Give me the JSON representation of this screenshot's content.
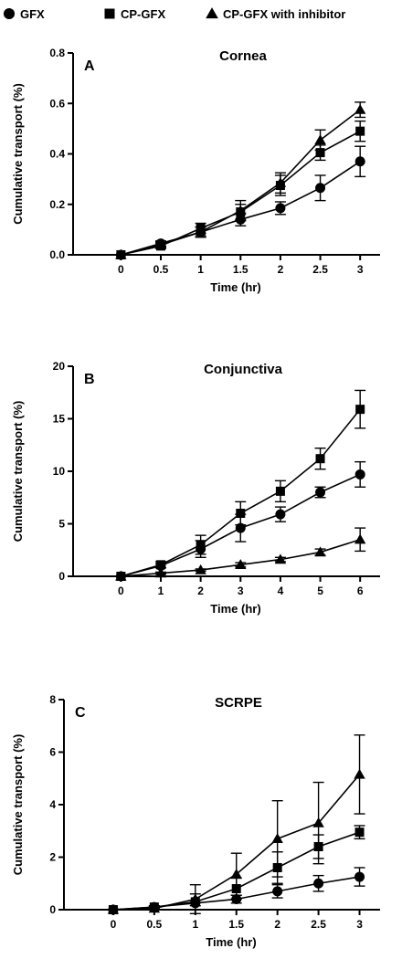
{
  "legend": [
    {
      "label": "GFX",
      "marker": "circle"
    },
    {
      "label": "CP-GFX",
      "marker": "square"
    },
    {
      "label": "CP-GFX with inhibitor",
      "marker": "triangle"
    }
  ],
  "chart_data": [
    {
      "type": "line",
      "panel_label": "A",
      "title": "Cornea",
      "xlabel": "Time (hr)",
      "ylabel": "Cumulative transport (%)",
      "x": [
        0,
        0.5,
        1,
        1.5,
        2,
        2.5,
        3
      ],
      "xticks": [
        "0",
        "0.5",
        "1",
        "1.5",
        "2",
        "2.5",
        "3"
      ],
      "xlim": [
        -0.6,
        3.25
      ],
      "ylim": [
        0,
        0.8
      ],
      "yticks": [
        "0.0",
        "0.2",
        "0.4",
        "0.6",
        "0.8"
      ],
      "series": [
        {
          "name": "GFX",
          "marker": "circle",
          "values": [
            0,
            0.045,
            0.09,
            0.14,
            0.185,
            0.265,
            0.37
          ],
          "err": [
            0,
            0.01,
            0.02,
            0.025,
            0.025,
            0.05,
            0.06
          ]
        },
        {
          "name": "CP-GFX",
          "marker": "square",
          "values": [
            0,
            0.035,
            0.105,
            0.17,
            0.275,
            0.405,
            0.49
          ],
          "err": [
            0,
            0.01,
            0.02,
            0.03,
            0.04,
            0.03,
            0.04
          ]
        },
        {
          "name": "CP-GFX with inhibitor",
          "marker": "triangle",
          "values": [
            0,
            0.04,
            0.09,
            0.175,
            0.285,
            0.455,
            0.575
          ],
          "err": [
            0,
            0.01,
            0.02,
            0.04,
            0.04,
            0.04,
            0.03
          ]
        }
      ]
    },
    {
      "type": "line",
      "panel_label": "B",
      "title": "Conjunctiva",
      "xlabel": "Time (hr)",
      "ylabel": "Cumulative transport (%)",
      "x": [
        0,
        1,
        2,
        3,
        4,
        5,
        6
      ],
      "xticks": [
        "0",
        "1",
        "2",
        "3",
        "4",
        "5",
        "6"
      ],
      "xlim": [
        -1.2,
        6.5
      ],
      "ylim": [
        0,
        20
      ],
      "yticks": [
        "0",
        "5",
        "10",
        "15",
        "20"
      ],
      "series": [
        {
          "name": "GFX",
          "marker": "circle",
          "values": [
            0,
            1.0,
            2.6,
            4.6,
            5.9,
            8.0,
            9.7
          ],
          "err": [
            0,
            0.2,
            0.8,
            1.3,
            0.7,
            0.5,
            1.2
          ]
        },
        {
          "name": "CP-GFX",
          "marker": "square",
          "values": [
            0,
            1.1,
            3.0,
            6.0,
            8.1,
            11.2,
            15.9
          ],
          "err": [
            0,
            0.3,
            0.9,
            1.1,
            1.0,
            1.0,
            1.8
          ]
        },
        {
          "name": "CP-GFX with inhibitor",
          "marker": "triangle",
          "values": [
            0,
            0.3,
            0.6,
            1.1,
            1.6,
            2.3,
            3.5
          ],
          "err": [
            0,
            0.1,
            0.1,
            0.2,
            0.2,
            0.3,
            1.1
          ]
        }
      ]
    },
    {
      "type": "line",
      "panel_label": "C",
      "title": "SCRPE",
      "xlabel": "Time (hr)",
      "ylabel": "Cumulative transport (%)",
      "x": [
        0,
        0.5,
        1,
        1.5,
        2,
        2.5,
        3
      ],
      "xticks": [
        "0",
        "0.5",
        "1",
        "1.5",
        "2",
        "2.5",
        "3"
      ],
      "xlim": [
        -0.6,
        3.25
      ],
      "ylim": [
        0,
        8
      ],
      "yticks": [
        "0",
        "2",
        "4",
        "6",
        "8"
      ],
      "series": [
        {
          "name": "GFX",
          "marker": "circle",
          "values": [
            0,
            0.1,
            0.25,
            0.4,
            0.7,
            1.0,
            1.25
          ],
          "err": [
            0,
            0.05,
            0.1,
            0.15,
            0.25,
            0.3,
            0.35
          ]
        },
        {
          "name": "CP-GFX",
          "marker": "square",
          "values": [
            0,
            0.1,
            0.3,
            0.8,
            1.6,
            2.4,
            2.95
          ],
          "err": [
            0,
            0.05,
            0.3,
            0.4,
            0.6,
            0.45,
            0.25
          ]
        },
        {
          "name": "CP-GFX with inhibitor",
          "marker": "triangle",
          "values": [
            0,
            0.05,
            0.4,
            1.35,
            2.7,
            3.3,
            5.15
          ],
          "err": [
            0,
            0.05,
            0.55,
            0.8,
            1.45,
            1.55,
            1.5
          ]
        }
      ]
    }
  ]
}
